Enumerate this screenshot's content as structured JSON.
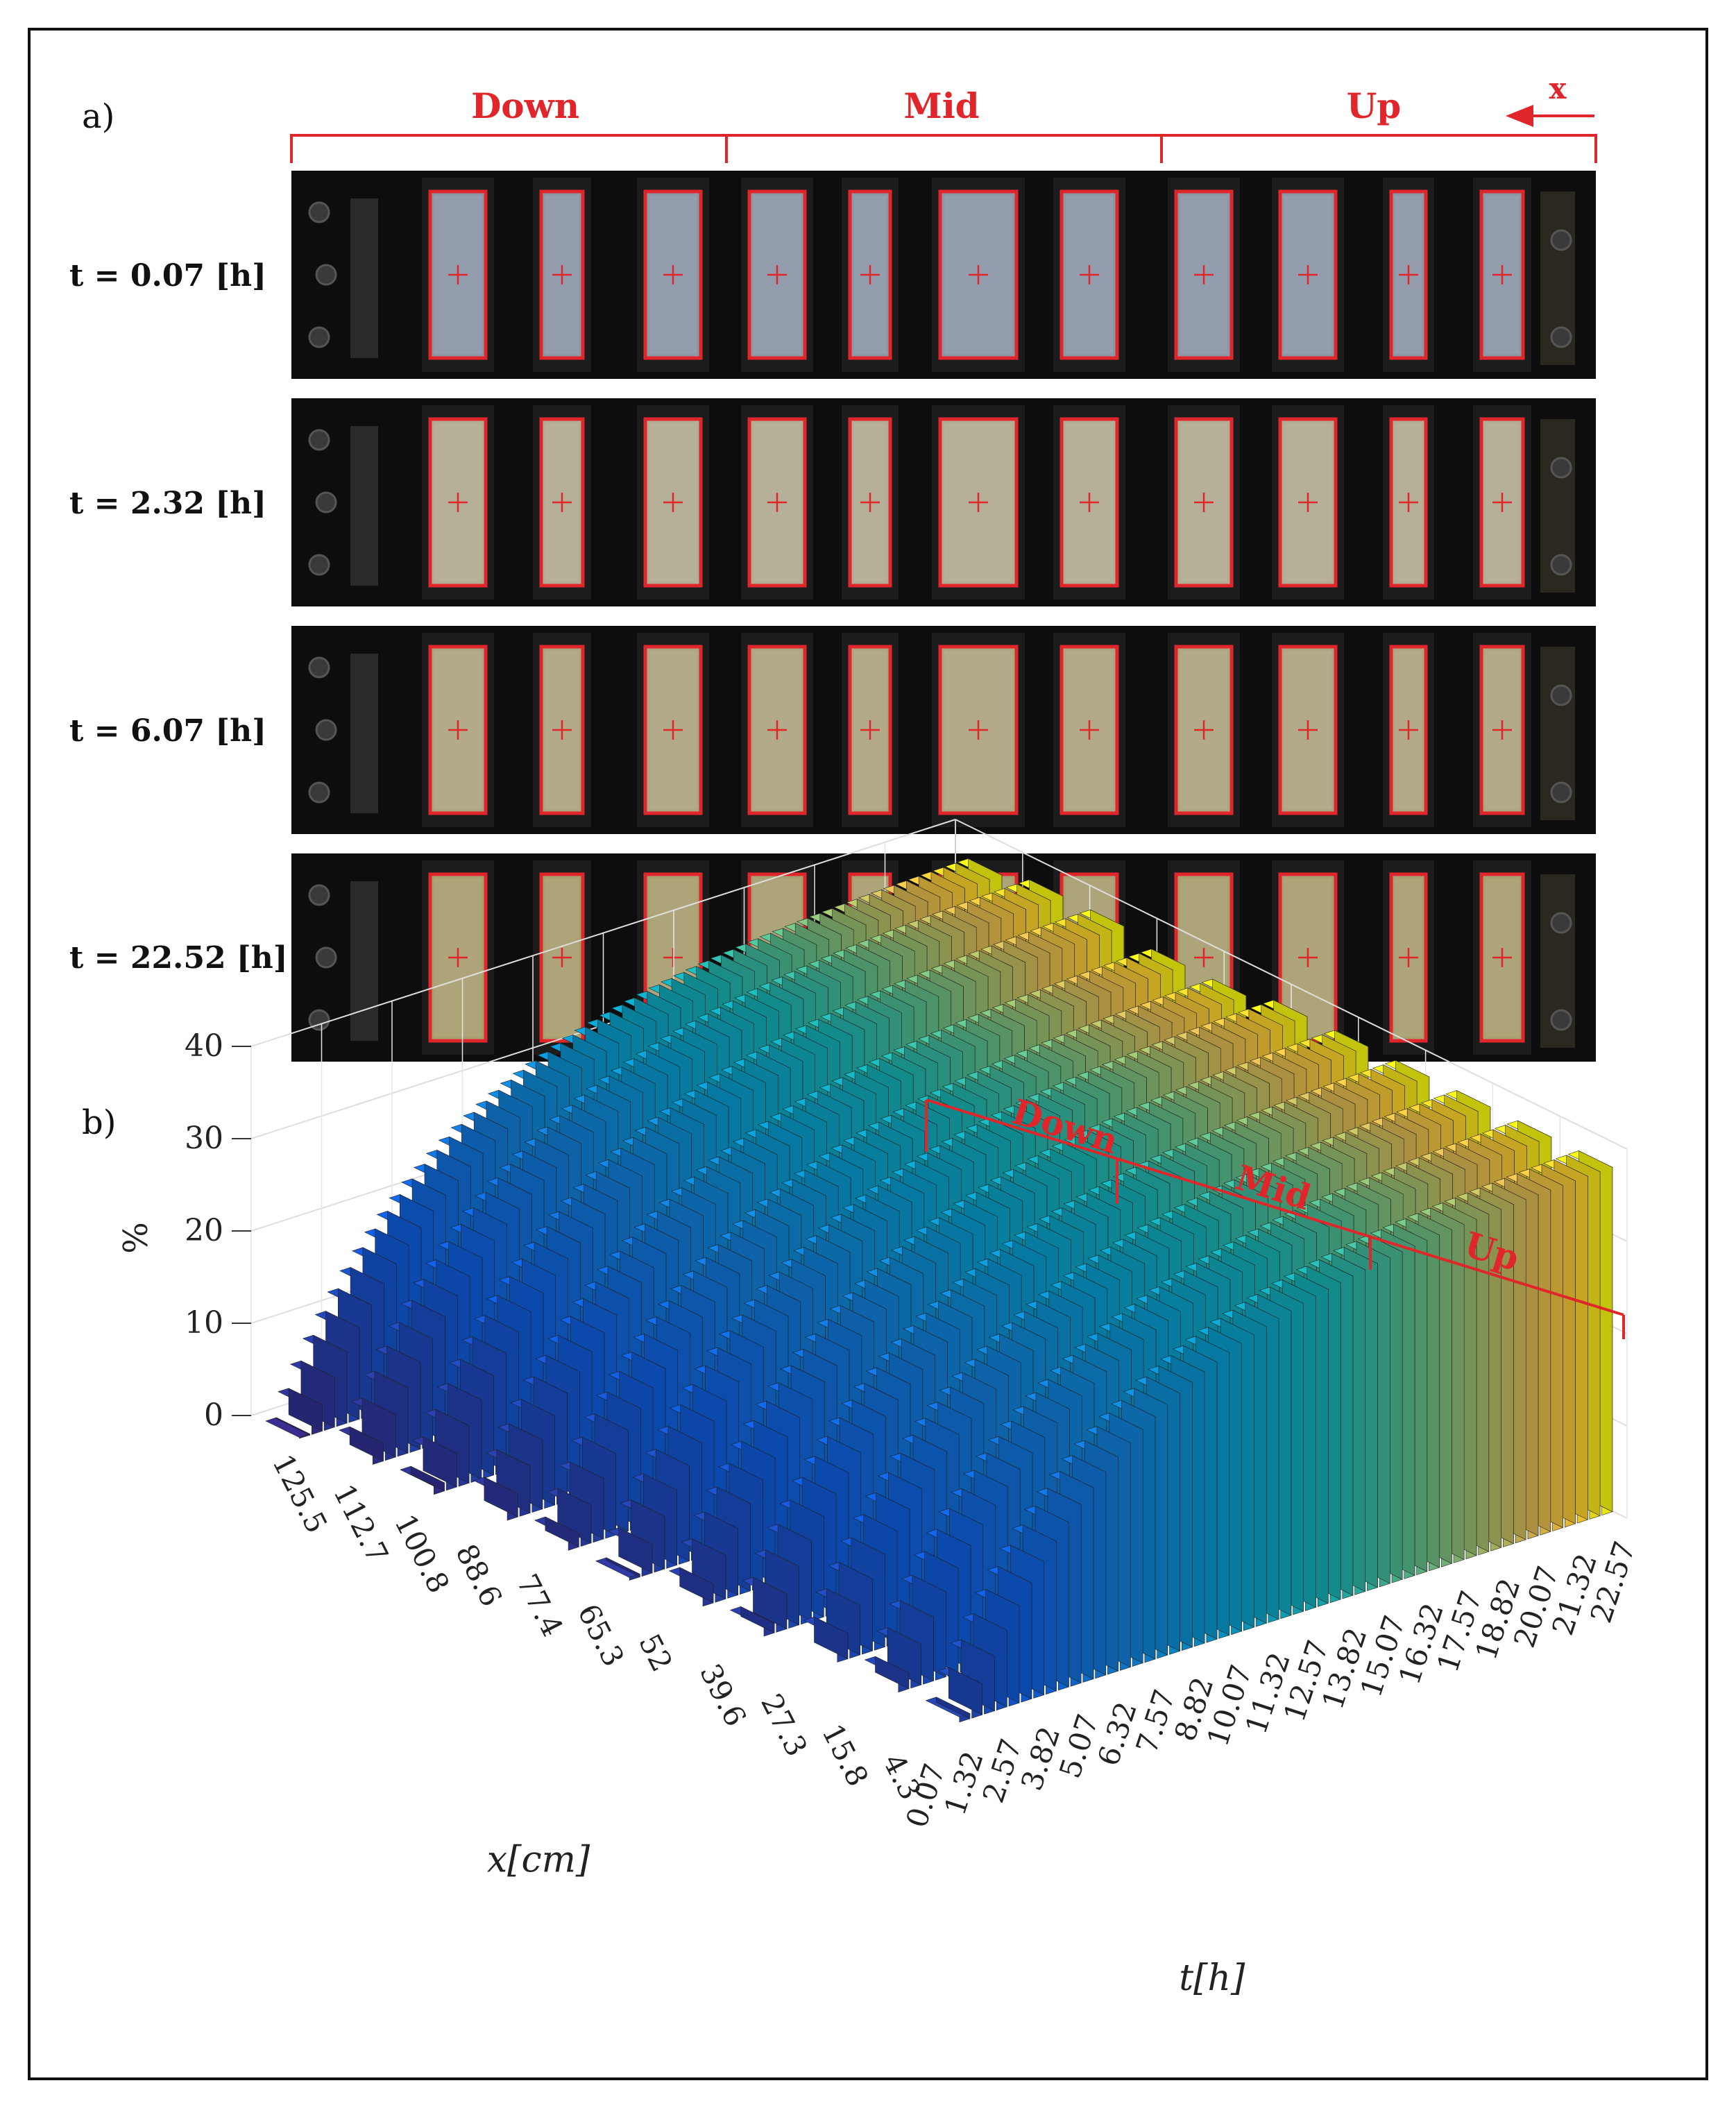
{
  "panel_a": {
    "label": "a)",
    "region_labels": [
      "Down",
      "Mid",
      "Up"
    ],
    "arrow_label": "x",
    "time_labels": [
      "t = 0.07 [h]",
      "t = 2.32 [h]",
      "t = 6.07 [h]",
      "t = 22.52 [h]"
    ],
    "photo_tint": [
      "#8e97a8",
      "#b3ac93",
      "#aea582",
      "#a8a071"
    ]
  },
  "panel_b": {
    "label": "b)",
    "region_labels": [
      "Down",
      "Mid",
      "Up"
    ]
  },
  "colors": {
    "accent_red": "#e0262b"
  },
  "chart_data": {
    "type": "bar3d",
    "zlabel": "%",
    "xlabel": "x[cm]",
    "ylabel": "t[h]",
    "zlim": [
      0,
      40
    ],
    "z_ticks": [
      "0",
      "10",
      "20",
      "30",
      "40"
    ],
    "x_ticks": [
      "125.5",
      "112.7",
      "100.8",
      "88.6",
      "77.4",
      "65.3",
      "52",
      "39.6",
      "27.3",
      "15.8",
      "4.3"
    ],
    "t_ticks": [
      "0.07",
      "1.32",
      "2.57",
      "3.82",
      "5.07",
      "6.32",
      "7.57",
      "8.82",
      "10.07",
      "11.32",
      "12.57",
      "13.82",
      "15.07",
      "16.32",
      "17.57",
      "18.82",
      "20.07",
      "21.32",
      "22.57"
    ],
    "x_positions": [
      125.5,
      112.7,
      100.8,
      88.6,
      77.4,
      65.3,
      52,
      39.6,
      27.3,
      15.8,
      4.3
    ],
    "final_values": [
      38,
      38,
      38,
      38,
      38,
      38,
      37,
      37,
      38,
      38,
      37
    ],
    "colormap": "parula",
    "grid": true
  }
}
